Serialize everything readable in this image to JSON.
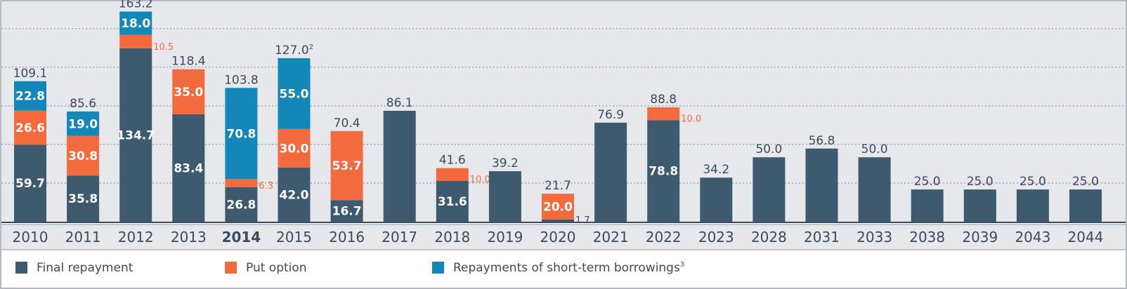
{
  "chart_data": {
    "type": "bar",
    "stacked": true,
    "categories": [
      "2010",
      "2011",
      "2012",
      "2013",
      "2014",
      "2015",
      "2016",
      "2017",
      "2018",
      "2019",
      "2020",
      "2021",
      "2022",
      "2023",
      "2028",
      "2031",
      "2033",
      "2038",
      "2039",
      "2043",
      "2044"
    ],
    "highlight_category": "2014",
    "series": [
      {
        "name": "Final repayment",
        "color": "#3d5a6e",
        "values": [
          59.7,
          35.8,
          134.7,
          83.4,
          26.8,
          42.0,
          16.7,
          86.1,
          31.6,
          39.2,
          1.7,
          76.9,
          78.8,
          34.2,
          50.0,
          56.8,
          50.0,
          25.0,
          25.0,
          25.0,
          25.0
        ],
        "labels": [
          "59.7",
          "35.8",
          "134.7",
          "83.4",
          "26.8",
          "42.0",
          "16.7",
          "",
          "31.6",
          "",
          "1.7",
          "",
          "78.8",
          "",
          "",
          "",
          "",
          "",
          "",
          "",
          ""
        ]
      },
      {
        "name": "Put option",
        "color": "#f26a3d",
        "values": [
          26.6,
          30.8,
          10.5,
          35.0,
          6.3,
          30.0,
          53.7,
          0,
          10.0,
          0,
          20.0,
          0,
          10.0,
          0,
          0,
          0,
          0,
          0,
          0,
          0,
          0
        ],
        "labels": [
          "26.6",
          "30.8",
          "10.5",
          "35.0",
          "6.3",
          "30.0",
          "53.7",
          "",
          "10.0",
          "",
          "20.0",
          "",
          "10.0",
          "",
          "",
          "",
          "",
          "",
          "",
          "",
          ""
        ]
      },
      {
        "name": "Repayments of short-term borrowings",
        "color": "#1287b8",
        "values": [
          22.8,
          19.0,
          18.0,
          0,
          70.8,
          55.0,
          0,
          0,
          0,
          0,
          0,
          0,
          0,
          0,
          0,
          0,
          0,
          0,
          0,
          0,
          0
        ],
        "labels": [
          "22.8",
          "19.0",
          "18.0",
          "",
          "70.8",
          "55.0",
          "",
          "",
          "",
          "",
          "",
          "",
          "",
          "",
          "",
          "",
          "",
          "",
          "",
          "",
          ""
        ]
      }
    ],
    "totals": [
      "109.1",
      "85.6",
      "163.2",
      "118.4",
      "103.8",
      "127.0",
      "70.4",
      "86.1",
      "41.6",
      "39.2",
      "21.7",
      "76.9",
      "88.8",
      "34.2",
      "50.0",
      "56.8",
      "50.0",
      "25.0",
      "25.0",
      "25.0",
      "25.0"
    ],
    "total_superscripts": [
      "",
      "",
      "",
      "",
      "",
      "2",
      "",
      "",
      "",
      "",
      "",
      "",
      "",
      "",
      "",
      "",
      "",
      "",
      "",
      "",
      ""
    ],
    "legend": [
      {
        "name": "Final repayment",
        "color": "#3d5a6e",
        "superscript": ""
      },
      {
        "name": "Put option",
        "color": "#f26a3d",
        "superscript": ""
      },
      {
        "name": "Repayments of short-term borrowings",
        "color": "#1287b8",
        "superscript": "3"
      }
    ],
    "ylim": [
      0,
      170
    ],
    "grid": true,
    "legend_position": "bottom",
    "plot_background": "#e6e8ec"
  }
}
